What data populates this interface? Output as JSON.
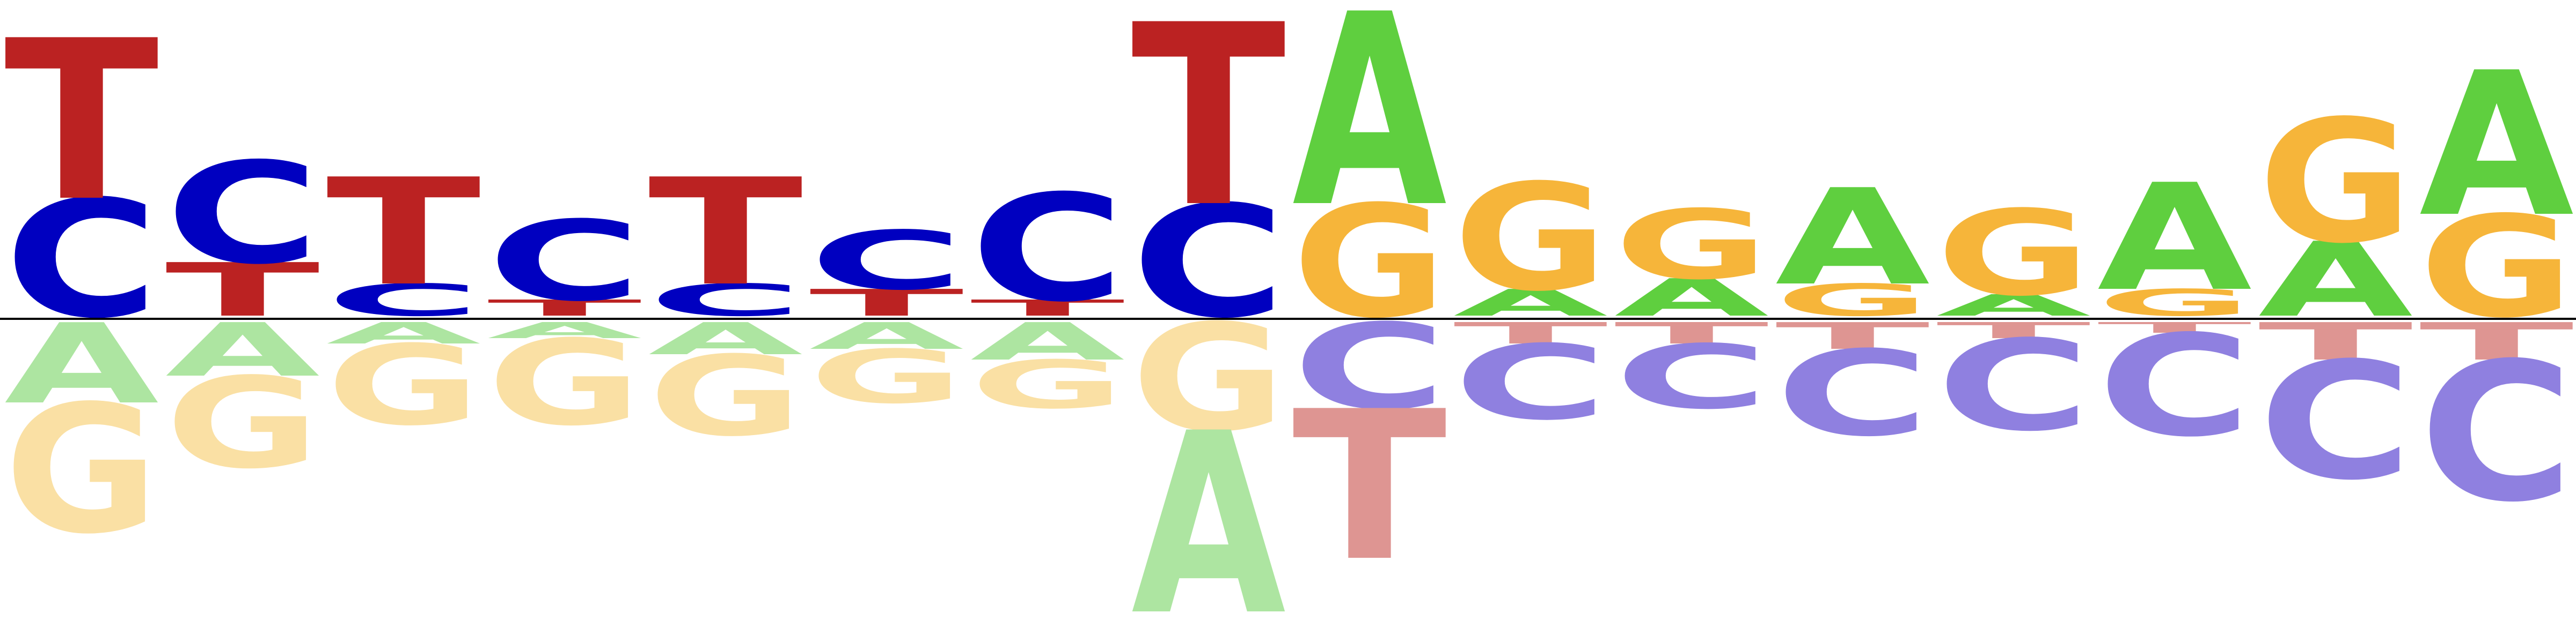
{
  "chart_data": {
    "type": "sequence-logo",
    "alphabet": [
      "A",
      "C",
      "G",
      "T"
    ],
    "colors": {
      "A": "#5fcf3f",
      "C": "#0000c0",
      "G": "#f6b53a",
      "T": "#bb2222",
      "A_neg": "#ade5a1",
      "C_neg": "#8f80e0",
      "G_neg": "#fae0a4",
      "T_neg": "#de9592"
    },
    "positions": [
      {
        "pos": [
          {
            "b": "T",
            "h": 0.3
          },
          {
            "b": "C",
            "h": 0.22
          }
        ],
        "neg": [
          {
            "b": "A",
            "h": 0.15
          },
          {
            "b": "G",
            "h": 0.24
          }
        ]
      },
      {
        "pos": [
          {
            "b": "C",
            "h": 0.19
          },
          {
            "b": "T",
            "h": 0.1
          }
        ],
        "neg": [
          {
            "b": "A",
            "h": 0.1
          },
          {
            "b": "G",
            "h": 0.17
          }
        ]
      },
      {
        "pos": [
          {
            "b": "T",
            "h": 0.2
          },
          {
            "b": "C",
            "h": 0.06
          }
        ],
        "neg": [
          {
            "b": "A",
            "h": 0.04
          },
          {
            "b": "G",
            "h": 0.15
          }
        ]
      },
      {
        "pos": [
          {
            "b": "C",
            "h": 0.15
          },
          {
            "b": "T",
            "h": 0.03
          }
        ],
        "neg": [
          {
            "b": "A",
            "h": 0.03
          },
          {
            "b": "G",
            "h": 0.16
          }
        ]
      },
      {
        "pos": [
          {
            "b": "T",
            "h": 0.2
          },
          {
            "b": "C",
            "h": 0.06
          }
        ],
        "neg": [
          {
            "b": "A",
            "h": 0.06
          },
          {
            "b": "G",
            "h": 0.15
          }
        ]
      },
      {
        "pos": [
          {
            "b": "C",
            "h": 0.11
          },
          {
            "b": "T",
            "h": 0.05
          }
        ],
        "neg": [
          {
            "b": "A",
            "h": 0.05
          },
          {
            "b": "G",
            "h": 0.1
          }
        ]
      },
      {
        "pos": [
          {
            "b": "C",
            "h": 0.2
          },
          {
            "b": "T",
            "h": 0.03
          }
        ],
        "neg": [
          {
            "b": "A",
            "h": 0.07
          },
          {
            "b": "G",
            "h": 0.09
          }
        ]
      },
      {
        "pos": [
          {
            "b": "T",
            "h": 0.34
          },
          {
            "b": "C",
            "h": 0.21
          }
        ],
        "neg": [
          {
            "b": "G",
            "h": 0.2
          },
          {
            "b": "A",
            "h": 0.34
          }
        ]
      },
      {
        "pos": [
          {
            "b": "A",
            "h": 0.36
          },
          {
            "b": "G",
            "h": 0.21
          }
        ],
        "neg": [
          {
            "b": "C",
            "h": 0.16
          },
          {
            "b": "T",
            "h": 0.28
          }
        ]
      },
      {
        "pos": [
          {
            "b": "G",
            "h": 0.2
          },
          {
            "b": "A",
            "h": 0.05
          }
        ],
        "neg": [
          {
            "b": "T",
            "h": 0.04
          },
          {
            "b": "C",
            "h": 0.14
          }
        ]
      },
      {
        "pos": [
          {
            "b": "G",
            "h": 0.13
          },
          {
            "b": "A",
            "h": 0.07
          }
        ],
        "neg": [
          {
            "b": "T",
            "h": 0.04
          },
          {
            "b": "C",
            "h": 0.12
          }
        ]
      },
      {
        "pos": [
          {
            "b": "A",
            "h": 0.18
          },
          {
            "b": "G",
            "h": 0.06
          }
        ],
        "neg": [
          {
            "b": "T",
            "h": 0.05
          },
          {
            "b": "C",
            "h": 0.16
          }
        ]
      },
      {
        "pos": [
          {
            "b": "G",
            "h": 0.16
          },
          {
            "b": "A",
            "h": 0.04
          }
        ],
        "neg": [
          {
            "b": "T",
            "h": 0.03
          },
          {
            "b": "C",
            "h": 0.17
          }
        ]
      },
      {
        "pos": [
          {
            "b": "A",
            "h": 0.2
          },
          {
            "b": "G",
            "h": 0.05
          }
        ],
        "neg": [
          {
            "b": "T",
            "h": 0.02
          },
          {
            "b": "C",
            "h": 0.19
          }
        ]
      },
      {
        "pos": [
          {
            "b": "G",
            "h": 0.23
          },
          {
            "b": "A",
            "h": 0.14
          }
        ],
        "neg": [
          {
            "b": "T",
            "h": 0.07
          },
          {
            "b": "C",
            "h": 0.22
          }
        ]
      },
      {
        "pos": [
          {
            "b": "A",
            "h": 0.27
          },
          {
            "b": "G",
            "h": 0.19
          }
        ],
        "neg": [
          {
            "b": "T",
            "h": 0.07
          },
          {
            "b": "C",
            "h": 0.26
          }
        ]
      }
    ]
  }
}
